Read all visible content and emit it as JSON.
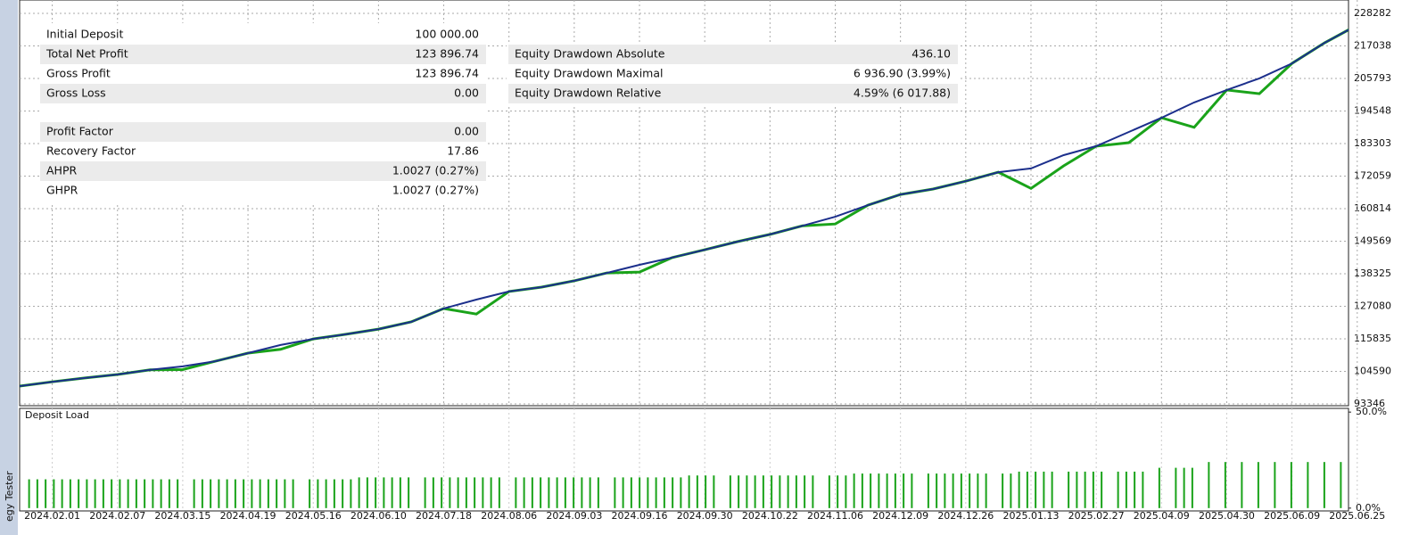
{
  "panel_label": "egy Tester",
  "chart_data": [
    {
      "type": "line",
      "categories": [
        null,
        "2024.02.01",
        null,
        "2024.02.07",
        null,
        "2024.03.15",
        null,
        "2024.04.19",
        null,
        "2024.05.16",
        null,
        "2024.06.10",
        null,
        "2024.07.18",
        null,
        "2024.08.06",
        null,
        "2024.09.03",
        null,
        "2024.09.16",
        null,
        "2024.09.30",
        null,
        "2024.10.22",
        null,
        "2024.11.06",
        null,
        "2024.12.09",
        null,
        "2024.12.26",
        null,
        "2025.01.13",
        null,
        "2025.02.27",
        null,
        "2025.04.09",
        null,
        "2025.04.30",
        null,
        "2025.06.09",
        null,
        "2025.06.25"
      ],
      "series": [
        {
          "color": "#1aa31a",
          "values": [
            99500,
            101000,
            102300,
            103500,
            105100,
            105200,
            108100,
            110900,
            112200,
            115800,
            117400,
            119200,
            121700,
            126300,
            124400,
            132200,
            133700,
            135900,
            138600,
            138900,
            143900,
            146600,
            149400,
            151900,
            154900,
            155500,
            162000,
            165700,
            167600,
            170300,
            173400,
            167800,
            175600,
            182400,
            183600,
            192200,
            188900,
            201800,
            200500,
            211000,
            218100,
            224200
          ]
        },
        {
          "color": "#1c2f8c",
          "values": [
            99500,
            101000,
            102300,
            103500,
            105100,
            106300,
            108100,
            110900,
            113700,
            115800,
            117400,
            119200,
            121700,
            126300,
            129400,
            132200,
            133700,
            135900,
            138600,
            141400,
            143900,
            146600,
            149400,
            151900,
            154900,
            158000,
            162000,
            165700,
            167600,
            170300,
            173400,
            174700,
            179300,
            182400,
            187300,
            192200,
            197500,
            201800,
            205800,
            211000,
            218100,
            224200
          ]
        }
      ],
      "ylim": [
        92730,
        232890
      ],
      "yticks": [
        93346,
        104590,
        115835,
        127080,
        138325,
        149569,
        160814,
        172059,
        183303,
        194548,
        205793,
        217038,
        228282
      ],
      "grid": true
    },
    {
      "type": "bar",
      "title": "Deposit Load",
      "color": "#1aa31a",
      "values": [
        15,
        15,
        15,
        15,
        15,
        15,
        15,
        15,
        15,
        15,
        15,
        15,
        15,
        15,
        15,
        15,
        15,
        15,
        15,
        null,
        15,
        15,
        15,
        15,
        15,
        15,
        15,
        15,
        15,
        15,
        15,
        15,
        15,
        null,
        15,
        15,
        15,
        15,
        15,
        15,
        16,
        16,
        16,
        16,
        16,
        16,
        16,
        null,
        16,
        16,
        16,
        16,
        16,
        16,
        16,
        16,
        16,
        16,
        null,
        16,
        16,
        16,
        16,
        16,
        16,
        16,
        16,
        16,
        16,
        16,
        null,
        16,
        16,
        16,
        16,
        16,
        16,
        16,
        16,
        16,
        17,
        17,
        17,
        17,
        null,
        17,
        17,
        17,
        17,
        17,
        17,
        17,
        17,
        17,
        17,
        17,
        null,
        17,
        17,
        17,
        18,
        18,
        18,
        18,
        18,
        18,
        18,
        18,
        null,
        18,
        18,
        18,
        18,
        18,
        18,
        18,
        18,
        null,
        18,
        18,
        19,
        19,
        19,
        19,
        19,
        null,
        19,
        19,
        19,
        19,
        19,
        null,
        19,
        19,
        19,
        19,
        null,
        21,
        null,
        21,
        21,
        21,
        null,
        24,
        null,
        24,
        null,
        24,
        null,
        24,
        null,
        24,
        null,
        24,
        null,
        24,
        null,
        24,
        null,
        24
      ],
      "ylim": [
        -1,
        51
      ],
      "yticks": [
        {
          "value": 50,
          "label": "50.0%"
        },
        {
          "value": 0,
          "label": "0.0%"
        }
      ]
    }
  ],
  "stats": {
    "left": [
      [
        {
          "label": "Initial Deposit",
          "value": "100 000.00"
        },
        {
          "label": "Total Net Profit",
          "value": "123 896.74"
        },
        {
          "label": "Gross Profit",
          "value": "123 896.74"
        },
        {
          "label": "Gross Loss",
          "value": "0.00"
        }
      ],
      [
        {
          "label": "Profit Factor",
          "value": "0.00"
        },
        {
          "label": "Recovery Factor",
          "value": "17.86"
        },
        {
          "label": "AHPR",
          "value": "1.0027 (0.27%)"
        },
        {
          "label": "GHPR",
          "value": "1.0027 (0.27%)"
        }
      ]
    ],
    "right": [
      {
        "label": "Equity Drawdown Absolute",
        "value": "436.10"
      },
      {
        "label": "Equity Drawdown Maximal",
        "value": "6 936.90 (3.99%)"
      },
      {
        "label": "Equity Drawdown Relative",
        "value": "4.59% (6 017.88)"
      }
    ]
  }
}
